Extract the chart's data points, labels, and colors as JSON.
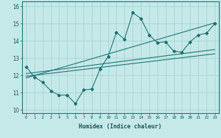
{
  "xlabel": "Humidex (Indice chaleur)",
  "xlim": [
    -0.5,
    23.5
  ],
  "ylim": [
    9.8,
    16.3
  ],
  "xtick_values": [
    0,
    1,
    2,
    3,
    4,
    5,
    6,
    7,
    8,
    9,
    10,
    11,
    12,
    13,
    14,
    15,
    16,
    17,
    18,
    19,
    20,
    21,
    22,
    23
  ],
  "xtick_labels": [
    "0",
    "1",
    "2",
    "3",
    "4",
    "5",
    "6",
    "7",
    "8",
    "9",
    "10",
    "11",
    "12",
    "13",
    "14",
    "15",
    "16",
    "17",
    "18",
    "19",
    "20",
    "21",
    "22",
    "23"
  ],
  "ytick_values": [
    10,
    11,
    12,
    13,
    14,
    15,
    16
  ],
  "background_color": "#c5e8e8",
  "grid_color": "#9fcfcf",
  "line_color": "#1a7070",
  "marker": "D",
  "series_main": {
    "x": [
      0,
      1,
      2,
      3,
      4,
      5,
      6,
      7,
      8,
      9,
      10,
      11,
      12,
      13,
      14,
      15,
      16,
      17,
      18,
      19,
      20,
      21,
      22,
      23
    ],
    "y": [
      12.5,
      11.9,
      11.6,
      11.1,
      10.85,
      10.85,
      10.35,
      11.15,
      11.2,
      12.35,
      13.1,
      14.5,
      14.1,
      15.65,
      15.3,
      14.35,
      13.9,
      13.95,
      13.4,
      13.35,
      13.95,
      14.35,
      14.45,
      15.0
    ]
  },
  "series_lines": [
    {
      "x": [
        0,
        23
      ],
      "y": [
        11.95,
        13.25
      ]
    },
    {
      "x": [
        0,
        23
      ],
      "y": [
        12.1,
        13.5
      ]
    },
    {
      "x": [
        0,
        23
      ],
      "y": [
        11.85,
        15.05
      ]
    }
  ]
}
